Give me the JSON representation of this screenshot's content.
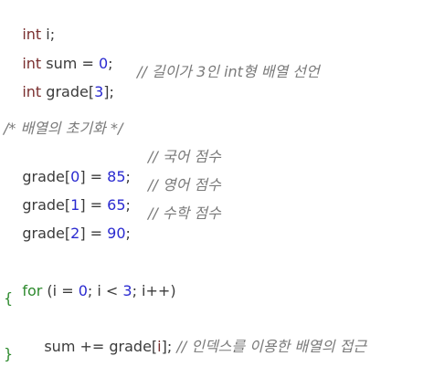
{
  "code": {
    "line1": {
      "type": "int",
      "rest": " i;"
    },
    "line2": {
      "type": "int",
      "name": " sum = ",
      "value": "0",
      "end": ";"
    },
    "line3": {
      "type": "int",
      "name": " grade[",
      "size": "3",
      "end": "];",
      "comment": "// 길이가 3인 int형 배열 선언"
    },
    "line4": {
      "comment": "/* 배열의 초기화 */"
    },
    "line5": {
      "lhs": "grade[",
      "index": "0",
      "mid": "] = ",
      "value": "85",
      "end": ";",
      "comment": "// 국어 점수"
    },
    "line6": {
      "lhs": "grade[",
      "index": "1",
      "mid": "] = ",
      "value": "65",
      "end": ";",
      "comment": "// 영어 점수"
    },
    "line7": {
      "lhs": "grade[",
      "index": "2",
      "mid": "] = ",
      "value": "90",
      "end": ";",
      "comment": "// 수학 점수"
    },
    "line8": {
      "keyword": "for",
      "open": " (i = ",
      "start": "0",
      "cond": "; i < ",
      "limit": "3",
      "incr": "; i++)"
    },
    "line9": {
      "brace": "{"
    },
    "line10": {
      "stmt_a": "sum += grade[",
      "index": "i",
      "stmt_b": "];",
      "comment": " // 인덱스를 이용한 배열의 접근"
    },
    "line11": {
      "brace": "}"
    }
  },
  "colors": {
    "keyword": "#7a2f2f",
    "control": "#2e8a2e",
    "number": "#2a2ad0",
    "comment": "#7a7a7a",
    "text": "#3b3b3b"
  }
}
